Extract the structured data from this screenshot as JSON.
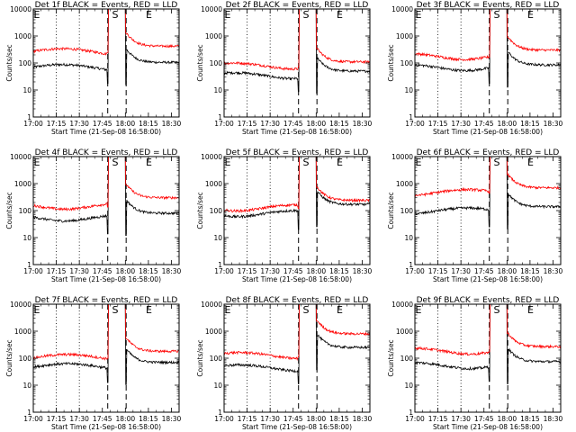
{
  "chart_data": {
    "type": "line",
    "scale": "log",
    "ylim": [
      1,
      10000
    ],
    "y_tick_labels": [
      "1",
      "10",
      "100",
      "1000",
      "10000"
    ],
    "x_range_minutes": [
      0,
      95
    ],
    "x_tick_minutes": [
      0,
      15,
      30,
      45,
      60,
      75,
      90
    ],
    "x_tick_labels": [
      "17:00",
      "17:15",
      "17:30",
      "17:45",
      "18:00",
      "18:15",
      "18:30"
    ],
    "ylabel": "Counts/sec",
    "xlabel": "Start Time (21-Sep-08 16:58:00)",
    "colors": {
      "events": "#000000",
      "lld": "#ff0000",
      "axes": "#000000"
    },
    "series_names": [
      "Events",
      "LLD"
    ],
    "dotted_lines_minutes": [
      0,
      15,
      30
    ],
    "dashed_lines_minutes": [
      48.5,
      60.5
    ],
    "markers": [
      {
        "label": "E",
        "x_minute": 0
      },
      {
        "label": "S",
        "x_minute": 51
      },
      {
        "label": "E",
        "x_minute": 73
      }
    ],
    "panels": [
      {
        "title": "Det 1f BLACK = Events, RED = LLD",
        "events_level": 70,
        "lld_level": 270,
        "events_after": 105,
        "lld_after": 420
      },
      {
        "title": "Det 2f BLACK = Events, RED = LLD",
        "events_level": 35,
        "lld_level": 80,
        "events_after": 50,
        "lld_after": 110
      },
      {
        "title": "Det 3f BLACK = Events, RED = LLD",
        "events_level": 70,
        "lld_level": 180,
        "events_after": 85,
        "lld_after": 300
      },
      {
        "title": "Det 4f BLACK = Events, RED = LLD",
        "events_level": 55,
        "lld_level": 150,
        "events_after": 80,
        "lld_after": 300
      },
      {
        "title": "Det 5f BLACK = Events, RED = LLD",
        "events_level": 80,
        "lld_level": 130,
        "events_after": 170,
        "lld_after": 240
      },
      {
        "title": "Det 6f BLACK = Events, RED = LLD",
        "events_level": 100,
        "lld_level": 480,
        "events_after": 140,
        "lld_after": 700
      },
      {
        "title": "Det 7f BLACK = Events, RED = LLD",
        "events_level": 50,
        "lld_level": 110,
        "events_after": 70,
        "lld_after": 180
      },
      {
        "title": "Det 8f BLACK = Events, RED = LLD",
        "events_level": 45,
        "lld_level": 130,
        "events_after": 250,
        "lld_after": 800
      },
      {
        "title": "Det 9f BLACK = Events, RED = LLD",
        "events_level": 55,
        "lld_level": 190,
        "events_after": 75,
        "lld_after": 270
      }
    ]
  }
}
